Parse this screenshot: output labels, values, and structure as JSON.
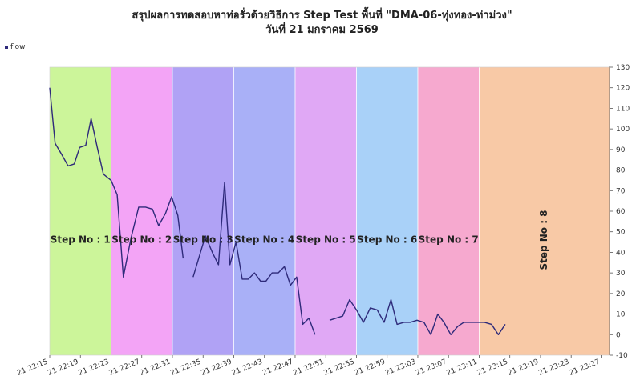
{
  "header": {
    "title": "สรุปผลการทดสอบหาท่อรั่วด้วยวิธีการ Step Test พื้นที่ \"DMA-06-ทุ่งทอง-ท่าม่วง\"",
    "subtitle": "วันที่ 21 มกราคม 2569"
  },
  "chart_data": {
    "type": "line",
    "title": "สรุปผลการทดสอบหาท่อรั่วด้วยวิธีการ Step Test พื้นที่ \"DMA-06-ทุ่งทอง-ท่าม่วง\"",
    "subtitle": "วันที่ 21 มกราคม 2569",
    "legend": {
      "placement": "top-left",
      "entries": [
        "flow"
      ]
    },
    "ylim": [
      -10,
      130
    ],
    "yticks": [
      -10,
      0,
      10,
      20,
      30,
      40,
      50,
      60,
      70,
      80,
      90,
      100,
      110,
      120,
      130
    ],
    "xlim_minutes": [
      0,
      73
    ],
    "xtick_labels": [
      "21 22:15",
      "21 22:19",
      "21 22:23",
      "21 22:27",
      "21 22:31",
      "21 22:35",
      "21 22:39",
      "21 22:43",
      "21 22:47",
      "21 22:51",
      "21 22:55",
      "21 22:59",
      "21 23:03",
      "21 23:07",
      "21 23:11",
      "21 23:15",
      "21 23:19",
      "21 23:23",
      "21 23:27"
    ],
    "grid": false,
    "steps": [
      {
        "label": "Step No : 1",
        "start": "22:15",
        "end": "22:23",
        "color": "#ccf59a"
      },
      {
        "label": "Step No : 2",
        "start": "22:23",
        "end": "22:31",
        "color": "#f3a4f6"
      },
      {
        "label": "Step No : 3",
        "start": "22:31",
        "end": "22:39",
        "color": "#b0a2f5"
      },
      {
        "label": "Step No : 4",
        "start": "22:39",
        "end": "22:47",
        "color": "#a9b0f7"
      },
      {
        "label": "Step No : 5",
        "start": "22:47",
        "end": "22:55",
        "color": "#e0a8f5"
      },
      {
        "label": "Step No : 6",
        "start": "22:55",
        "end": "23:03",
        "color": "#a9d1f8"
      },
      {
        "label": "Step No : 7",
        "start": "23:03",
        "end": "23:11",
        "color": "#f6a9cf"
      },
      {
        "label": "Step No : 8",
        "start": "23:11",
        "end": "23:14",
        "color": "#f8c9a6",
        "vertical": true
      }
    ],
    "series": [
      {
        "name": "flow",
        "color": "#2e2a7a",
        "segments": [
          [
            [
              0,
              120
            ],
            [
              0.7,
              93
            ],
            [
              1.5,
              88
            ],
            [
              2.4,
              82
            ],
            [
              3.2,
              83
            ],
            [
              3.9,
              91
            ],
            [
              4.7,
              92
            ],
            [
              5.4,
              105
            ],
            [
              6.2,
              91
            ],
            [
              7.0,
              78
            ],
            [
              8.0,
              75
            ],
            [
              8.8,
              68
            ],
            [
              9.6,
              28
            ],
            [
              10.6,
              47
            ],
            [
              11.6,
              62
            ],
            [
              12.5,
              62
            ],
            [
              13.4,
              61
            ],
            [
              14.2,
              53
            ],
            [
              15.1,
              59
            ],
            [
              15.9,
              67
            ],
            [
              16.7,
              58
            ],
            [
              17.4,
              37
            ]
          ],
          [
            [
              18.7,
              28
            ],
            [
              20.3,
              48
            ],
            [
              21.2,
              40
            ],
            [
              22.0,
              34
            ],
            [
              22.8,
              74
            ],
            [
              23.5,
              34
            ],
            [
              24.3,
              45
            ],
            [
              25.1,
              27
            ],
            [
              25.9,
              27
            ],
            [
              26.7,
              30
            ],
            [
              27.5,
              26
            ],
            [
              28.2,
              26
            ],
            [
              29.0,
              30
            ],
            [
              29.8,
              30
            ],
            [
              30.6,
              33
            ],
            [
              31.4,
              24
            ],
            [
              32.2,
              28
            ],
            [
              33.0,
              5
            ],
            [
              33.8,
              8
            ],
            [
              34.6,
              0
            ]
          ],
          [
            [
              36.5,
              7
            ],
            [
              38.2,
              9
            ],
            [
              39.1,
              17
            ],
            [
              40.0,
              12
            ],
            [
              40.9,
              6
            ],
            [
              41.8,
              13
            ],
            [
              42.7,
              12
            ],
            [
              43.6,
              6
            ],
            [
              44.5,
              17
            ],
            [
              45.3,
              5
            ],
            [
              46.2,
              6
            ],
            [
              47.0,
              6
            ],
            [
              47.9,
              7
            ],
            [
              48.8,
              6
            ],
            [
              49.7,
              0
            ],
            [
              50.6,
              10
            ],
            [
              51.4,
              6
            ],
            [
              52.3,
              0
            ],
            [
              53.2,
              4
            ],
            [
              54.0,
              6
            ],
            [
              54.9,
              6
            ],
            [
              55.8,
              6
            ],
            [
              56.7,
              6
            ],
            [
              57.6,
              5
            ],
            [
              58.5,
              0
            ],
            [
              59.4,
              5
            ]
          ]
        ]
      }
    ]
  }
}
